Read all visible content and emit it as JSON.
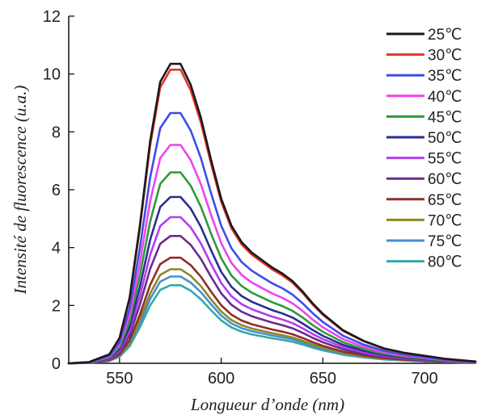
{
  "chart_data": {
    "type": "line",
    "xlabel": "Longueur d’onde (nm)",
    "ylabel": "Intensité de fluorescence (u.a.)",
    "xlim": [
      525,
      725
    ],
    "ylim": [
      0,
      12
    ],
    "xticks": [
      550,
      600,
      650,
      700
    ],
    "yticks": [
      0,
      2,
      4,
      6,
      8,
      10,
      12
    ],
    "grid": false,
    "legend_position": "top-right",
    "x": [
      525,
      535,
      545,
      550,
      555,
      560,
      565,
      570,
      575,
      580,
      585,
      590,
      595,
      600,
      605,
      610,
      615,
      620,
      625,
      630,
      635,
      640,
      645,
      650,
      660,
      670,
      680,
      690,
      700,
      710,
      725
    ],
    "series": [
      {
        "name": "25℃",
        "color": "#1a1a1a",
        "peak": 10.35
      },
      {
        "name": "30℃",
        "color": "#e8322c",
        "peak": 10.15
      },
      {
        "name": "35℃",
        "color": "#3a4ee8",
        "peak": 8.65
      },
      {
        "name": "40℃",
        "color": "#ef44ef",
        "peak": 7.55
      },
      {
        "name": "45℃",
        "color": "#2e9a3a",
        "peak": 6.6
      },
      {
        "name": "50℃",
        "color": "#2a2e8e",
        "peak": 5.75
      },
      {
        "name": "55℃",
        "color": "#b23ef0",
        "peak": 5.05
      },
      {
        "name": "60℃",
        "color": "#6a2c8c",
        "peak": 4.4
      },
      {
        "name": "65℃",
        "color": "#8e2e2a",
        "peak": 3.65
      },
      {
        "name": "70℃",
        "color": "#8a8a22",
        "peak": 3.25
      },
      {
        "name": "75℃",
        "color": "#4a8ed6",
        "peak": 3.0
      },
      {
        "name": "80℃",
        "color": "#35a8a8",
        "peak": 2.7
      }
    ],
    "profile": [
      0.0,
      0.004,
      0.03,
      0.085,
      0.22,
      0.46,
      0.74,
      0.94,
      1.0,
      1.0,
      0.93,
      0.82,
      0.68,
      0.55,
      0.46,
      0.405,
      0.37,
      0.345,
      0.32,
      0.3,
      0.275,
      0.24,
      0.2,
      0.165,
      0.11,
      0.075,
      0.05,
      0.035,
      0.025,
      0.015,
      0.006
    ]
  }
}
